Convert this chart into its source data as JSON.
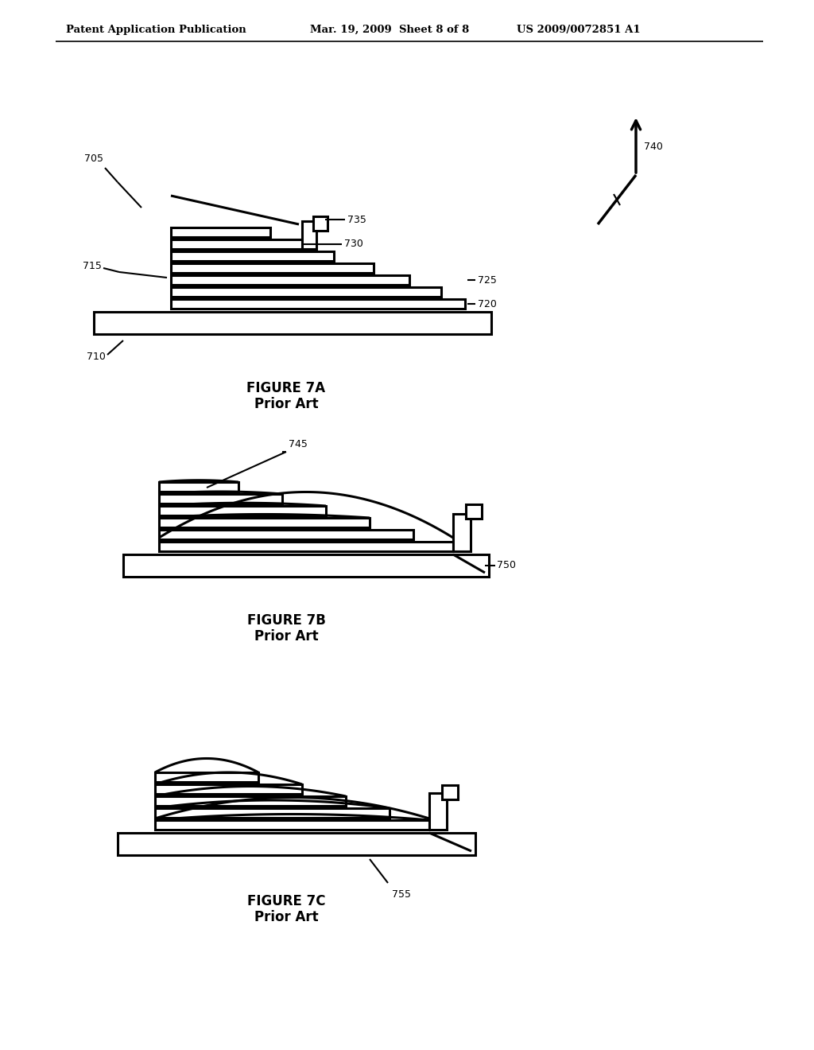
{
  "header_left": "Patent Application Publication",
  "header_mid": "Mar. 19, 2009  Sheet 8 of 8",
  "header_right": "US 2009/0072851 A1",
  "fig7a_title": "FIGURE 7A",
  "fig7a_sub": "Prior Art",
  "fig7b_title": "FIGURE 7B",
  "fig7b_sub": "Prior Art",
  "fig7c_title": "FIGURE 7C",
  "fig7c_sub": "Prior Art",
  "bg_color": "#ffffff",
  "line_color": "#000000"
}
